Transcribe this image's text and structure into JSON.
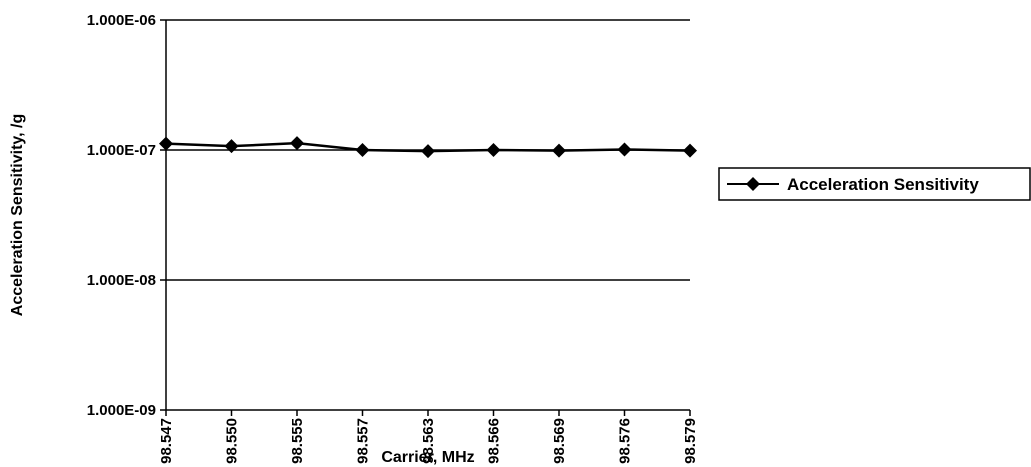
{
  "chart_data": {
    "type": "line",
    "title": "",
    "xlabel": "Carrier, MHz",
    "ylabel": "Acceleration Sensitivity, /g",
    "yscale": "log",
    "ylim": [
      1e-09,
      1e-06
    ],
    "y_ticks": [
      {
        "value": 1e-06,
        "label": "1.000E-06"
      },
      {
        "value": 1e-07,
        "label": "1.000E-07"
      },
      {
        "value": 1e-08,
        "label": "1.000E-08"
      },
      {
        "value": 1e-09,
        "label": "1.000E-09"
      }
    ],
    "categories": [
      "98.547",
      "98.550",
      "98.555",
      "98.557",
      "98.563",
      "98.566",
      "98.569",
      "98.576",
      "98.579"
    ],
    "series": [
      {
        "name": "Acceleration Sensitivity",
        "marker": "diamond",
        "color": "#000000",
        "values": [
          1.12e-07,
          1.07e-07,
          1.13e-07,
          1e-07,
          9.8e-08,
          1e-07,
          9.9e-08,
          1.01e-07,
          9.9e-08
        ]
      }
    ],
    "grid": "horizontal",
    "legend_position": "right"
  }
}
